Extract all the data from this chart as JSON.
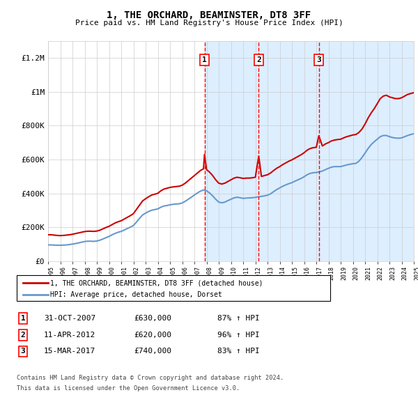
{
  "title": "1, THE ORCHARD, BEAMINSTER, DT8 3FF",
  "subtitle": "Price paid vs. HM Land Registry's House Price Index (HPI)",
  "x_start_year": 1995,
  "x_end_year": 2025,
  "ylim": [
    0,
    1300000
  ],
  "yticks": [
    0,
    200000,
    400000,
    600000,
    800000,
    1000000,
    1200000
  ],
  "ytick_labels": [
    "£0",
    "£200K",
    "£400K",
    "£600K",
    "£800K",
    "£1M",
    "£1.2M"
  ],
  "sale_points": [
    {
      "year": 2007.83,
      "price": 630000,
      "label": "1"
    },
    {
      "year": 2012.28,
      "price": 620000,
      "label": "2"
    },
    {
      "year": 2017.21,
      "price": 740000,
      "label": "3"
    }
  ],
  "sale_label_data": [
    {
      "num": "1",
      "date": "31-OCT-2007",
      "price": "£630,000",
      "pct": "87% ↑ HPI"
    },
    {
      "num": "2",
      "date": "11-APR-2012",
      "price": "£620,000",
      "pct": "96% ↑ HPI"
    },
    {
      "num": "3",
      "date": "15-MAR-2017",
      "price": "£740,000",
      "pct": "83% ↑ HPI"
    }
  ],
  "red_line_color": "#cc0000",
  "blue_line_color": "#6699cc",
  "shade_color": "#ddeeff",
  "grid_color": "#cccccc",
  "background_color": "#ffffff",
  "legend_line1": "1, THE ORCHARD, BEAMINSTER, DT8 3FF (detached house)",
  "legend_line2": "HPI: Average price, detached house, Dorset",
  "footer1": "Contains HM Land Registry data © Crown copyright and database right 2024.",
  "footer2": "This data is licensed under the Open Government Licence v3.0.",
  "hpi_red_data": [
    [
      1995.0,
      155000
    ],
    [
      1995.25,
      155000
    ],
    [
      1995.5,
      153000
    ],
    [
      1995.75,
      151000
    ],
    [
      1996.0,
      150000
    ],
    [
      1996.25,
      151000
    ],
    [
      1996.5,
      153000
    ],
    [
      1996.75,
      155000
    ],
    [
      1997.0,
      158000
    ],
    [
      1997.25,
      162000
    ],
    [
      1997.5,
      166000
    ],
    [
      1997.75,
      170000
    ],
    [
      1998.0,
      174000
    ],
    [
      1998.25,
      176000
    ],
    [
      1998.5,
      176000
    ],
    [
      1998.75,
      175000
    ],
    [
      1999.0,
      177000
    ],
    [
      1999.25,
      182000
    ],
    [
      1999.5,
      190000
    ],
    [
      1999.75,
      198000
    ],
    [
      2000.0,
      205000
    ],
    [
      2000.25,
      215000
    ],
    [
      2000.5,
      225000
    ],
    [
      2000.75,
      232000
    ],
    [
      2001.0,
      238000
    ],
    [
      2001.25,
      248000
    ],
    [
      2001.5,
      258000
    ],
    [
      2001.75,
      268000
    ],
    [
      2002.0,
      280000
    ],
    [
      2002.25,
      305000
    ],
    [
      2002.5,
      330000
    ],
    [
      2002.75,
      355000
    ],
    [
      2003.0,
      368000
    ],
    [
      2003.25,
      380000
    ],
    [
      2003.5,
      390000
    ],
    [
      2003.75,
      395000
    ],
    [
      2004.0,
      400000
    ],
    [
      2004.25,
      415000
    ],
    [
      2004.5,
      425000
    ],
    [
      2004.75,
      430000
    ],
    [
      2005.0,
      435000
    ],
    [
      2005.25,
      438000
    ],
    [
      2005.5,
      440000
    ],
    [
      2005.75,
      442000
    ],
    [
      2006.0,
      448000
    ],
    [
      2006.25,
      460000
    ],
    [
      2006.5,
      475000
    ],
    [
      2006.75,
      490000
    ],
    [
      2007.0,
      505000
    ],
    [
      2007.25,
      520000
    ],
    [
      2007.5,
      535000
    ],
    [
      2007.75,
      545000
    ],
    [
      2007.83,
      630000
    ],
    [
      2008.0,
      540000
    ],
    [
      2008.25,
      525000
    ],
    [
      2008.5,
      505000
    ],
    [
      2008.75,
      480000
    ],
    [
      2009.0,
      460000
    ],
    [
      2009.25,
      455000
    ],
    [
      2009.5,
      460000
    ],
    [
      2009.75,
      470000
    ],
    [
      2010.0,
      480000
    ],
    [
      2010.25,
      490000
    ],
    [
      2010.5,
      495000
    ],
    [
      2010.75,
      492000
    ],
    [
      2011.0,
      488000
    ],
    [
      2011.25,
      490000
    ],
    [
      2011.5,
      490000
    ],
    [
      2011.75,
      492000
    ],
    [
      2012.0,
      495000
    ],
    [
      2012.28,
      620000
    ],
    [
      2012.5,
      500000
    ],
    [
      2012.75,
      505000
    ],
    [
      2013.0,
      510000
    ],
    [
      2013.25,
      520000
    ],
    [
      2013.5,
      535000
    ],
    [
      2013.75,
      548000
    ],
    [
      2014.0,
      558000
    ],
    [
      2014.25,
      570000
    ],
    [
      2014.5,
      580000
    ],
    [
      2014.75,
      590000
    ],
    [
      2015.0,
      598000
    ],
    [
      2015.25,
      608000
    ],
    [
      2015.5,
      618000
    ],
    [
      2015.75,
      628000
    ],
    [
      2016.0,
      640000
    ],
    [
      2016.25,
      655000
    ],
    [
      2016.5,
      665000
    ],
    [
      2016.75,
      670000
    ],
    [
      2017.0,
      672000
    ],
    [
      2017.21,
      740000
    ],
    [
      2017.5,
      680000
    ],
    [
      2017.75,
      692000
    ],
    [
      2018.0,
      700000
    ],
    [
      2018.25,
      710000
    ],
    [
      2018.5,
      715000
    ],
    [
      2018.75,
      718000
    ],
    [
      2019.0,
      720000
    ],
    [
      2019.25,
      728000
    ],
    [
      2019.5,
      735000
    ],
    [
      2019.75,
      740000
    ],
    [
      2020.0,
      745000
    ],
    [
      2020.25,
      748000
    ],
    [
      2020.5,
      760000
    ],
    [
      2020.75,
      780000
    ],
    [
      2021.0,
      810000
    ],
    [
      2021.25,
      845000
    ],
    [
      2021.5,
      875000
    ],
    [
      2021.75,
      900000
    ],
    [
      2022.0,
      930000
    ],
    [
      2022.25,
      960000
    ],
    [
      2022.5,
      975000
    ],
    [
      2022.75,
      980000
    ],
    [
      2023.0,
      970000
    ],
    [
      2023.25,
      965000
    ],
    [
      2023.5,
      960000
    ],
    [
      2023.75,
      960000
    ],
    [
      2024.0,
      965000
    ],
    [
      2024.25,
      975000
    ],
    [
      2024.5,
      985000
    ],
    [
      2024.75,
      990000
    ],
    [
      2025.0,
      995000
    ]
  ],
  "hpi_blue_data": [
    [
      1995.0,
      95000
    ],
    [
      1995.25,
      95000
    ],
    [
      1995.5,
      94000
    ],
    [
      1995.75,
      93000
    ],
    [
      1996.0,
      93000
    ],
    [
      1996.25,
      94000
    ],
    [
      1996.5,
      95000
    ],
    [
      1996.75,
      97000
    ],
    [
      1997.0,
      100000
    ],
    [
      1997.25,
      103000
    ],
    [
      1997.5,
      107000
    ],
    [
      1997.75,
      111000
    ],
    [
      1998.0,
      115000
    ],
    [
      1998.25,
      117000
    ],
    [
      1998.5,
      117000
    ],
    [
      1998.75,
      116000
    ],
    [
      1999.0,
      118000
    ],
    [
      1999.25,
      123000
    ],
    [
      1999.5,
      130000
    ],
    [
      1999.75,
      138000
    ],
    [
      2000.0,
      145000
    ],
    [
      2000.25,
      155000
    ],
    [
      2000.5,
      163000
    ],
    [
      2000.75,
      170000
    ],
    [
      2001.0,
      175000
    ],
    [
      2001.25,
      183000
    ],
    [
      2001.5,
      192000
    ],
    [
      2001.75,
      200000
    ],
    [
      2002.0,
      210000
    ],
    [
      2002.25,
      230000
    ],
    [
      2002.5,
      252000
    ],
    [
      2002.75,
      272000
    ],
    [
      2003.0,
      283000
    ],
    [
      2003.25,
      293000
    ],
    [
      2003.5,
      300000
    ],
    [
      2003.75,
      304000
    ],
    [
      2004.0,
      308000
    ],
    [
      2004.25,
      318000
    ],
    [
      2004.5,
      325000
    ],
    [
      2004.75,
      328000
    ],
    [
      2005.0,
      332000
    ],
    [
      2005.25,
      335000
    ],
    [
      2005.5,
      337000
    ],
    [
      2005.75,
      338000
    ],
    [
      2006.0,
      343000
    ],
    [
      2006.25,
      353000
    ],
    [
      2006.5,
      365000
    ],
    [
      2006.75,
      377000
    ],
    [
      2007.0,
      390000
    ],
    [
      2007.25,
      402000
    ],
    [
      2007.5,
      413000
    ],
    [
      2007.75,
      420000
    ],
    [
      2008.0,
      415000
    ],
    [
      2008.25,
      402000
    ],
    [
      2008.5,
      385000
    ],
    [
      2008.75,
      365000
    ],
    [
      2009.0,
      348000
    ],
    [
      2009.25,
      344000
    ],
    [
      2009.5,
      348000
    ],
    [
      2009.75,
      357000
    ],
    [
      2010.0,
      365000
    ],
    [
      2010.25,
      373000
    ],
    [
      2010.5,
      377000
    ],
    [
      2010.75,
      374000
    ],
    [
      2011.0,
      370000
    ],
    [
      2011.25,
      372000
    ],
    [
      2011.5,
      373000
    ],
    [
      2011.75,
      374000
    ],
    [
      2012.0,
      376000
    ],
    [
      2012.25,
      379000
    ],
    [
      2012.5,
      382000
    ],
    [
      2012.75,
      385000
    ],
    [
      2013.0,
      389000
    ],
    [
      2013.25,
      397000
    ],
    [
      2013.5,
      410000
    ],
    [
      2013.75,
      422000
    ],
    [
      2014.0,
      432000
    ],
    [
      2014.25,
      442000
    ],
    [
      2014.5,
      450000
    ],
    [
      2014.75,
      457000
    ],
    [
      2015.0,
      463000
    ],
    [
      2015.25,
      472000
    ],
    [
      2015.5,
      480000
    ],
    [
      2015.75,
      488000
    ],
    [
      2016.0,
      498000
    ],
    [
      2016.25,
      510000
    ],
    [
      2016.5,
      518000
    ],
    [
      2016.75,
      522000
    ],
    [
      2017.0,
      523000
    ],
    [
      2017.25,
      527000
    ],
    [
      2017.5,
      532000
    ],
    [
      2017.75,
      540000
    ],
    [
      2018.0,
      548000
    ],
    [
      2018.25,
      555000
    ],
    [
      2018.5,
      558000
    ],
    [
      2018.75,
      558000
    ],
    [
      2019.0,
      558000
    ],
    [
      2019.25,
      563000
    ],
    [
      2019.5,
      568000
    ],
    [
      2019.75,
      572000
    ],
    [
      2020.0,
      575000
    ],
    [
      2020.25,
      577000
    ],
    [
      2020.5,
      590000
    ],
    [
      2020.75,
      612000
    ],
    [
      2021.0,
      638000
    ],
    [
      2021.25,
      665000
    ],
    [
      2021.5,
      688000
    ],
    [
      2021.75,
      705000
    ],
    [
      2022.0,
      720000
    ],
    [
      2022.25,
      735000
    ],
    [
      2022.5,
      742000
    ],
    [
      2022.75,
      742000
    ],
    [
      2023.0,
      735000
    ],
    [
      2023.25,
      730000
    ],
    [
      2023.5,
      727000
    ],
    [
      2023.75,
      726000
    ],
    [
      2024.0,
      728000
    ],
    [
      2024.25,
      735000
    ],
    [
      2024.5,
      742000
    ],
    [
      2024.75,
      748000
    ],
    [
      2025.0,
      752000
    ]
  ]
}
